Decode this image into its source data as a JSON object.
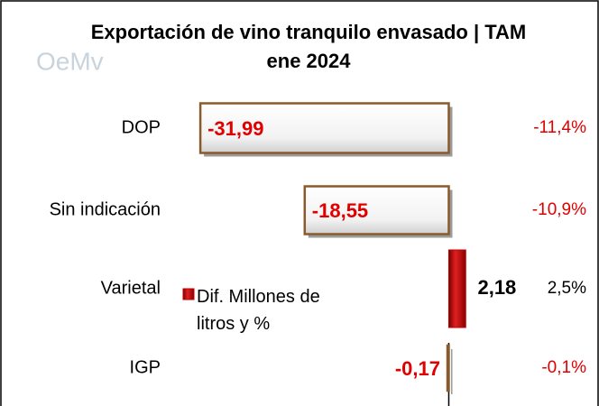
{
  "chart_data": {
    "type": "bar",
    "orientation": "horizontal",
    "title": "Exportación de vino tranquilo envasado | TAM ene 2024",
    "logo": "OeMv",
    "categories": [
      "DOP",
      "Sin indicación",
      "Varietal",
      "IGP"
    ],
    "series": [
      {
        "name": "Dif. Millones de litros y %",
        "color": "#c00000",
        "negative_color": "#ffffff",
        "border_color": "#8b5a2b",
        "values": [
          -31.99,
          -18.55,
          2.18,
          -0.17
        ],
        "value_labels": [
          "-31,99",
          "-18,55",
          "2,18",
          "-0,17"
        ]
      }
    ],
    "pct_values": [
      -11.4,
      -10.9,
      2.5,
      -0.1
    ],
    "pct_labels": [
      "-11,4%",
      "-10,9%",
      "2,5%",
      "-0,1%"
    ],
    "xlim": [
      -32,
      2.5
    ]
  }
}
